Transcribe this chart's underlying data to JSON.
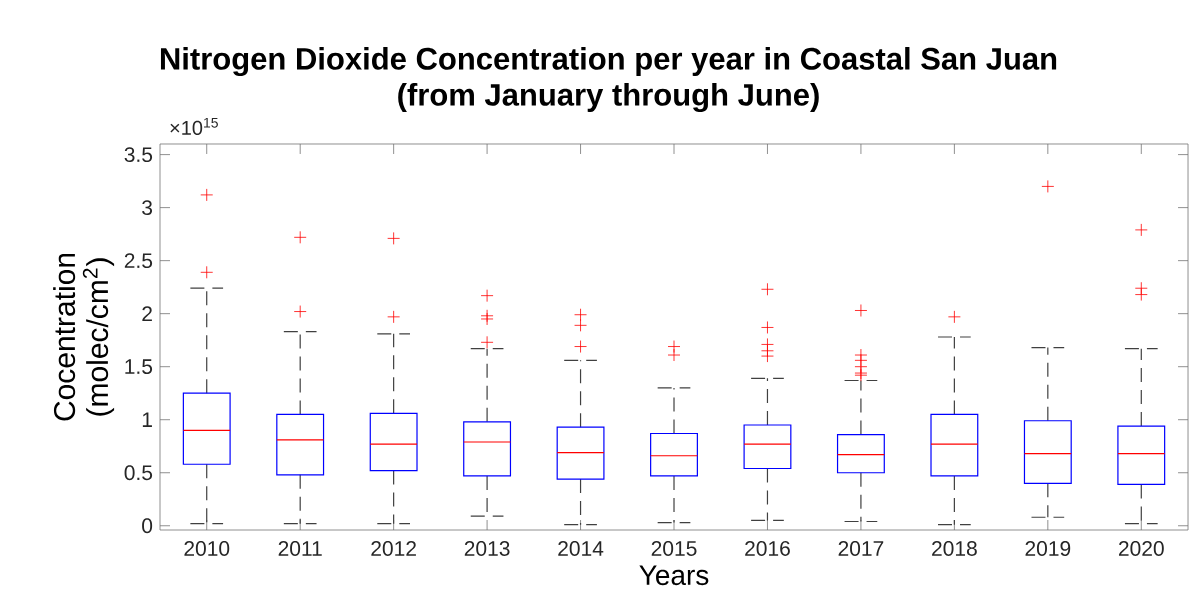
{
  "chart_data": {
    "type": "box",
    "title": "Nitrogen Dioxide Concentration per year in Coastal San Juan",
    "subtitle": "(from January through June)",
    "xlabel": "Years",
    "ylabel": "Cocentration (molec/cm$^{2}$)",
    "annotations": [
      "×10$^{15}$"
    ],
    "categories": [
      "2010",
      "2011",
      "2012",
      "2013",
      "2014",
      "2015",
      "2016",
      "2017",
      "2018",
      "2019",
      "2020"
    ],
    "color": "#0000ff",
    "boxes": [
      {
        "low": 0.02,
        "q1": 0.58,
        "median": 0.9,
        "q3": 1.25,
        "high": 2.24,
        "outliers": [
          2.39,
          3.12
        ]
      },
      {
        "low": 0.02,
        "q1": 0.48,
        "median": 0.81,
        "q3": 1.05,
        "high": 1.83,
        "outliers": [
          2.02,
          2.72
        ]
      },
      {
        "low": 0.02,
        "q1": 0.52,
        "median": 0.77,
        "q3": 1.06,
        "high": 1.81,
        "outliers": [
          1.97,
          2.71
        ]
      },
      {
        "low": 0.09,
        "q1": 0.47,
        "median": 0.79,
        "q3": 0.98,
        "high": 1.67,
        "outliers": [
          1.73,
          1.95,
          1.98,
          2.17
        ]
      },
      {
        "low": 0.01,
        "q1": 0.44,
        "median": 0.69,
        "q3": 0.93,
        "high": 1.56,
        "outliers": [
          1.69,
          1.89,
          1.99
        ]
      },
      {
        "low": 0.03,
        "q1": 0.47,
        "median": 0.66,
        "q3": 0.87,
        "high": 1.3,
        "outliers": [
          1.61,
          1.69
        ]
      },
      {
        "low": 0.05,
        "q1": 0.54,
        "median": 0.77,
        "q3": 0.95,
        "high": 1.39,
        "outliers": [
          1.6,
          1.65,
          1.71,
          1.87,
          2.23
        ]
      },
      {
        "low": 0.04,
        "q1": 0.5,
        "median": 0.67,
        "q3": 0.86,
        "high": 1.37,
        "outliers": [
          1.42,
          1.44,
          1.5,
          1.56,
          1.61,
          2.03
        ]
      },
      {
        "low": 0.01,
        "q1": 0.47,
        "median": 0.77,
        "q3": 1.05,
        "high": 1.78,
        "outliers": [
          1.97
        ]
      },
      {
        "low": 0.08,
        "q1": 0.4,
        "median": 0.68,
        "q3": 0.99,
        "high": 1.68,
        "outliers": [
          3.2
        ]
      },
      {
        "low": 0.02,
        "q1": 0.39,
        "median": 0.68,
        "q3": 0.94,
        "high": 1.67,
        "outliers": [
          2.18,
          2.24,
          2.79
        ]
      }
    ],
    "ylim": [
      -0.04,
      3.6
    ],
    "yticks": [
      0,
      0.5,
      1,
      1.5,
      2,
      2.5,
      3,
      3.5
    ]
  }
}
